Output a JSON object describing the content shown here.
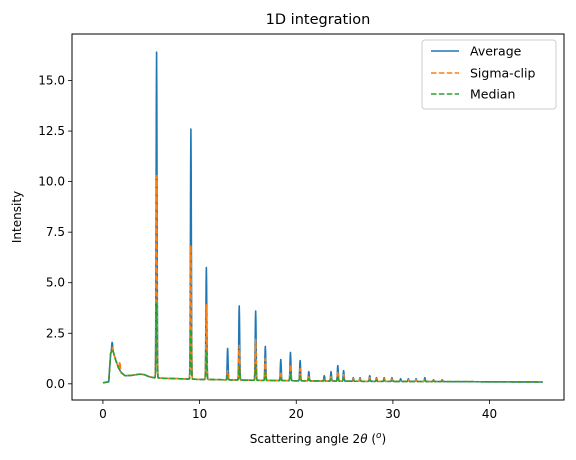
{
  "chart_data": {
    "type": "line",
    "title": "1D integration",
    "xlabel_prefix": "Scattering angle 2",
    "xlabel_theta": "θ",
    "xlabel_unit_open": " (",
    "xlabel_unit_sup": "o",
    "xlabel_unit_close": ")",
    "ylabel": "Intensity",
    "xlim": [
      -3.2,
      47.7
    ],
    "ylim": [
      -0.8,
      17.3
    ],
    "xticks": [
      0,
      10,
      20,
      30,
      40
    ],
    "yticks": [
      0.0,
      2.5,
      5.0,
      7.5,
      10.0,
      12.5,
      15.0
    ],
    "x_range": [
      0.0,
      45.5
    ],
    "grid": false,
    "legend_position": "top-right",
    "background": {
      "points": [
        [
          0,
          0.05
        ],
        [
          0.6,
          0.1
        ],
        [
          0.8,
          1.5
        ],
        [
          1.0,
          1.7
        ],
        [
          1.3,
          1.2
        ],
        [
          1.6,
          0.8
        ],
        [
          1.9,
          0.55
        ],
        [
          2.3,
          0.4
        ],
        [
          3.0,
          0.42
        ],
        [
          3.8,
          0.48
        ],
        [
          4.3,
          0.45
        ],
        [
          4.8,
          0.35
        ],
        [
          5.3,
          0.3
        ],
        [
          6.0,
          0.28
        ],
        [
          8.0,
          0.25
        ],
        [
          10,
          0.22
        ],
        [
          15,
          0.18
        ],
        [
          20,
          0.15
        ],
        [
          25,
          0.13
        ],
        [
          30,
          0.12
        ],
        [
          35,
          0.11
        ],
        [
          40,
          0.1
        ],
        [
          45.5,
          0.09
        ]
      ]
    },
    "series": [
      {
        "name": "Average",
        "color": "#1f77b4",
        "style": "solid",
        "peaks": [
          [
            0.95,
            2.05
          ],
          [
            5.55,
            16.4
          ],
          [
            9.1,
            12.6
          ],
          [
            10.7,
            5.75
          ],
          [
            12.9,
            1.75
          ],
          [
            14.1,
            3.85
          ],
          [
            15.8,
            3.6
          ],
          [
            16.8,
            1.85
          ],
          [
            18.4,
            1.2
          ],
          [
            19.4,
            1.55
          ],
          [
            20.4,
            1.15
          ],
          [
            21.3,
            0.6
          ],
          [
            22.9,
            0.4
          ],
          [
            23.6,
            0.6
          ],
          [
            24.3,
            0.9
          ],
          [
            24.9,
            0.65
          ],
          [
            25.9,
            0.3
          ],
          [
            26.6,
            0.3
          ],
          [
            27.6,
            0.4
          ],
          [
            28.3,
            0.3
          ],
          [
            29.1,
            0.3
          ],
          [
            29.9,
            0.3
          ],
          [
            30.8,
            0.25
          ],
          [
            31.6,
            0.25
          ],
          [
            32.4,
            0.25
          ],
          [
            33.3,
            0.3
          ],
          [
            34.2,
            0.2
          ],
          [
            35.1,
            0.2
          ]
        ]
      },
      {
        "name": "Sigma-clip",
        "color": "#ff7f0e",
        "style": "dashed",
        "peaks": [
          [
            0.95,
            1.8
          ],
          [
            1.35,
            1.25
          ],
          [
            1.75,
            1.1
          ],
          [
            5.55,
            10.3
          ],
          [
            9.1,
            6.85
          ],
          [
            10.7,
            3.9
          ],
          [
            12.9,
            0.65
          ],
          [
            14.1,
            1.9
          ],
          [
            15.8,
            2.2
          ],
          [
            16.8,
            1.25
          ],
          [
            18.4,
            0.6
          ],
          [
            19.4,
            0.95
          ],
          [
            20.4,
            0.75
          ],
          [
            21.3,
            0.35
          ],
          [
            22.9,
            0.3
          ],
          [
            23.6,
            0.35
          ],
          [
            24.3,
            0.6
          ],
          [
            24.9,
            0.45
          ],
          [
            25.9,
            0.25
          ],
          [
            26.6,
            0.25
          ],
          [
            27.6,
            0.3
          ],
          [
            28.3,
            0.25
          ],
          [
            29.1,
            0.25
          ],
          [
            29.9,
            0.25
          ],
          [
            30.8,
            0.2
          ],
          [
            31.6,
            0.2
          ],
          [
            32.4,
            0.2
          ],
          [
            33.3,
            0.25
          ],
          [
            34.2,
            0.17
          ],
          [
            35.1,
            0.17
          ]
        ]
      },
      {
        "name": "Median",
        "color": "#2ca02c",
        "style": "dashed",
        "peaks": [
          [
            0.95,
            1.65
          ],
          [
            5.55,
            4.0
          ],
          [
            9.1,
            2.7
          ],
          [
            10.7,
            1.6
          ],
          [
            12.9,
            0.4
          ],
          [
            14.1,
            0.85
          ],
          [
            15.8,
            0.95
          ],
          [
            16.8,
            0.6
          ],
          [
            18.4,
            0.35
          ],
          [
            19.4,
            0.5
          ],
          [
            20.4,
            0.4
          ],
          [
            21.3,
            0.25
          ],
          [
            22.9,
            0.2
          ],
          [
            23.6,
            0.25
          ],
          [
            24.3,
            0.35
          ],
          [
            24.9,
            0.3
          ],
          [
            25.9,
            0.18
          ],
          [
            26.6,
            0.18
          ],
          [
            27.6,
            0.2
          ],
          [
            28.3,
            0.18
          ],
          [
            29.1,
            0.18
          ],
          [
            29.9,
            0.18
          ],
          [
            30.8,
            0.15
          ],
          [
            31.6,
            0.15
          ],
          [
            32.4,
            0.15
          ],
          [
            33.3,
            0.18
          ],
          [
            34.2,
            0.14
          ],
          [
            35.1,
            0.14
          ]
        ]
      }
    ]
  }
}
